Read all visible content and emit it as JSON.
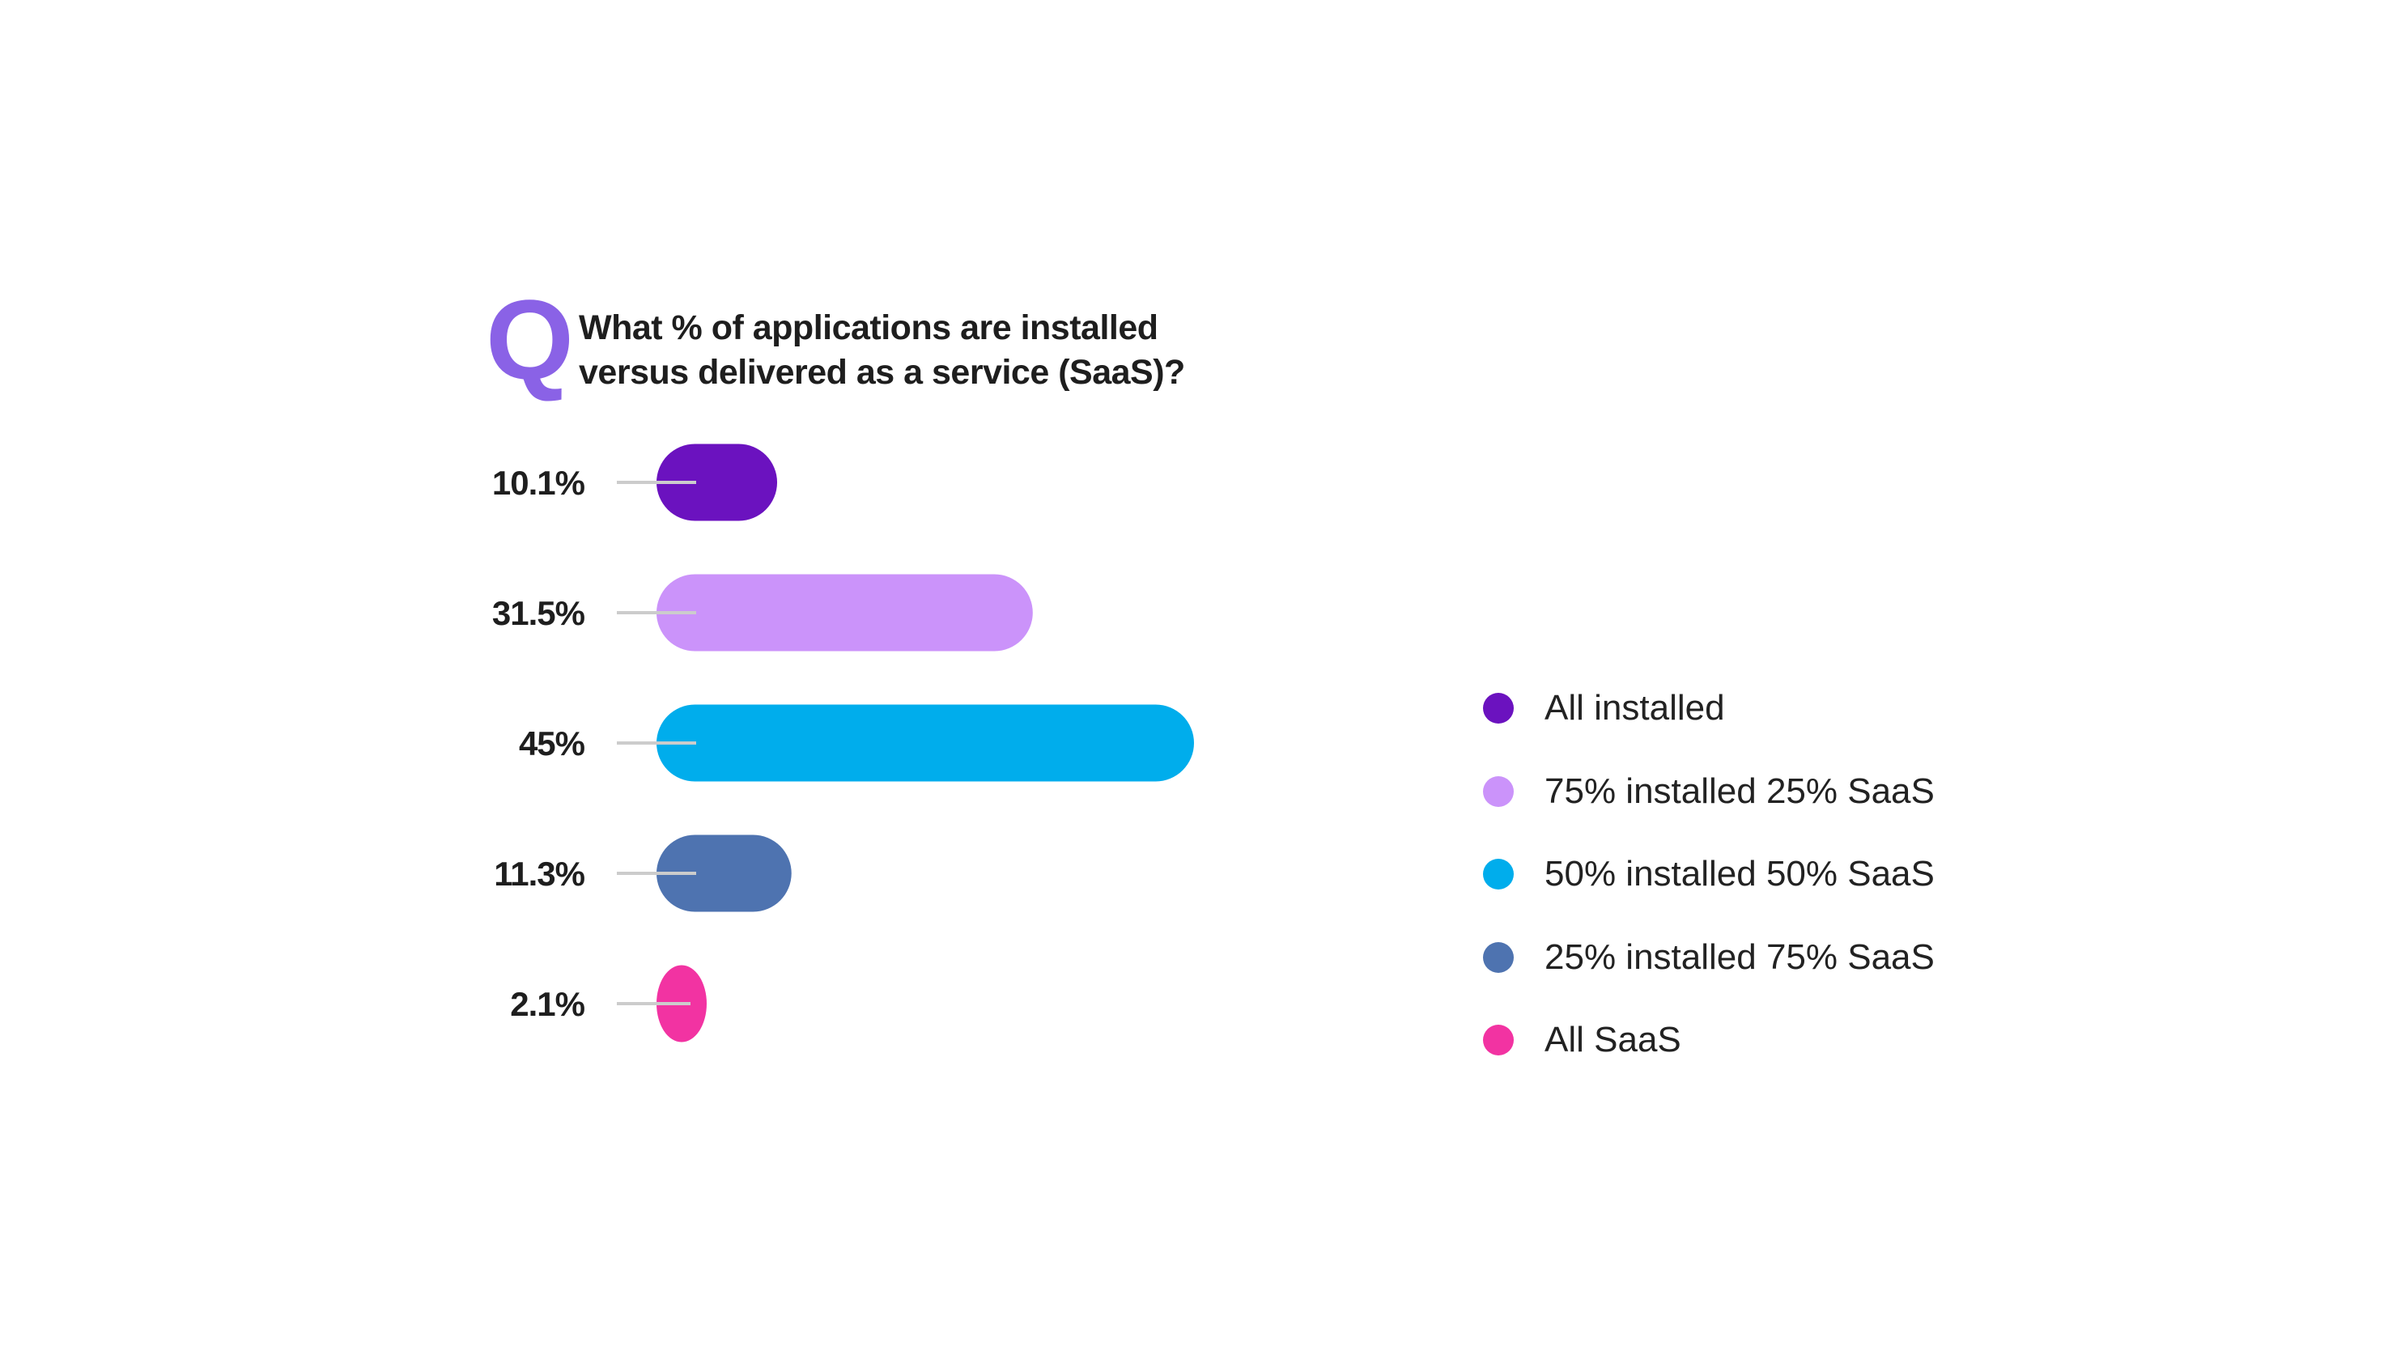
{
  "title": {
    "mark": "Q",
    "line1": "What % of applications are installed",
    "line2": "versus delivered as a service (SaaS)?"
  },
  "colors": {
    "q_mark": "#8a62e6",
    "connector": "#cccccc"
  },
  "chart_data": {
    "type": "bar",
    "orientation": "horizontal",
    "title": "What % of applications are installed versus delivered as a service (SaaS)?",
    "categories": [
      "All installed",
      "75% installed 25% SaaS",
      "50% installed 50% SaaS",
      "25% installed 75% SaaS",
      "All SaaS"
    ],
    "values": [
      10.1,
      31.5,
      45,
      11.3,
      2.1
    ],
    "data_labels": [
      "10.1%",
      "31.5%",
      "45%",
      "11.3%",
      "2.1%"
    ],
    "colors": [
      "#6b12bf",
      "#cb93fa",
      "#00adec",
      "#4e73b0",
      "#f233a2"
    ],
    "xlim": [
      0,
      45
    ],
    "grid": false,
    "legend_placement": "right"
  },
  "legend": {
    "items": [
      {
        "label": "All installed",
        "color": "#6b12bf"
      },
      {
        "label": "75% installed 25% SaaS",
        "color": "#cb93fa"
      },
      {
        "label": "50% installed 50% SaaS",
        "color": "#00adec"
      },
      {
        "label": "25% installed 75% SaaS",
        "color": "#4e73b0"
      },
      {
        "label": "All SaaS",
        "color": "#f233a2"
      }
    ]
  }
}
